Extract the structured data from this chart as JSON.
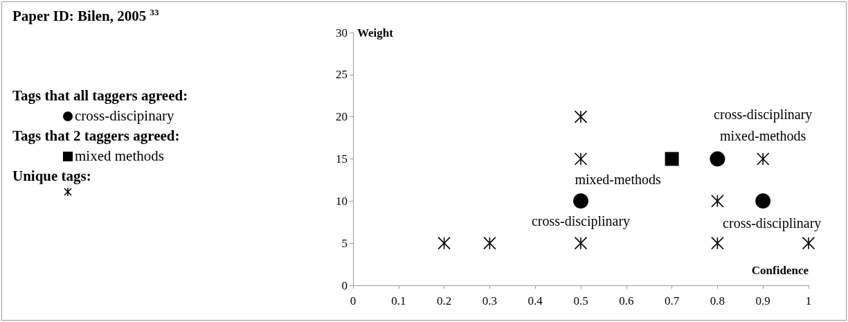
{
  "chart_data": {
    "type": "scatter",
    "title": "Paper ID: Bilen, 2005 $^{33}$",
    "xlabel": "Confidence",
    "ylabel": "Weight",
    "xlim": [
      0,
      1
    ],
    "xticks": [
      0,
      0.1,
      0.2,
      0.3,
      0.4,
      0.5,
      0.6,
      0.7,
      0.8,
      0.9,
      1
    ],
    "ylim": [
      0,
      30
    ],
    "yticks": [
      0,
      5,
      10,
      15,
      20,
      25,
      30
    ],
    "grid": false,
    "legend": "left",
    "series": [
      {
        "color": "#000000",
        "marker": "cross",
        "x": [
          0.2,
          0.3,
          0.5,
          0.5,
          0.5,
          0.8,
          0.8,
          0.9,
          1
        ],
        "values": [
          5,
          5,
          5,
          15,
          20,
          5,
          10,
          15,
          5
        ]
      },
      {
        "name": "cross-discipinary",
        "color": "#000000",
        "marker": "circle",
        "x": [
          0.5,
          0.8,
          0.9
        ],
        "values": [
          10,
          15,
          10
        ]
      },
      {
        "name": "mixed methods",
        "color": "#000000",
        "marker": "square",
        "x": [
          0.7
        ],
        "values": [
          15
        ]
      }
    ],
    "legend_title": [
      "Tags that all taggers agreed:",
      "Tags that 2 taggers agreed:",
      "Unique tags:"
    ],
    "annotations": [
      {
        "text": "mixed-methods",
        "x": 0.7,
        "y": 15
      },
      {
        "text": "cross-disciplinary",
        "x": 0.5,
        "y": 10
      },
      {
        "text": "cross-disciplinary",
        "x": 0.9,
        "y": 10
      },
      {
        "text": "cross-disciplinary",
        "x": 0.9,
        "y": 15
      },
      {
        "text": "mixed-methods",
        "x": 0.9,
        "y": 15
      }
    ]
  }
}
